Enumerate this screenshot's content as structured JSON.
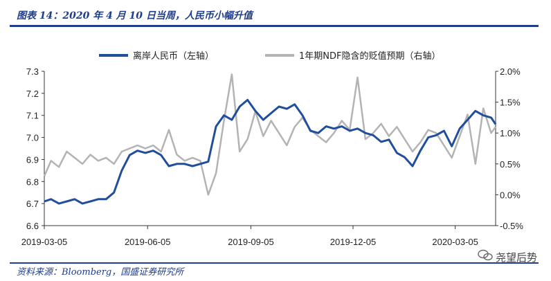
{
  "figure": {
    "title": "图表 14：2020 年 4 月 10 日当周，人民币小幅升值",
    "source": "资料来源：Bloomberg，国盛证券研究所",
    "watermark": "尧望后势"
  },
  "chart_data": {
    "type": "line",
    "title": "",
    "legend_position": "top",
    "grid": false,
    "x_ticks": [
      "2019-03-05",
      "2019-06-05",
      "2019-09-05",
      "2019-12-05",
      "2020-03-05"
    ],
    "x_range": [
      "2019-03-05",
      "2020-04-10"
    ],
    "y_left": {
      "ticks": [
        "6.6",
        "6.7",
        "6.8",
        "6.9",
        "7.0",
        "7.1",
        "7.2",
        "7.3"
      ],
      "range": [
        6.6,
        7.3
      ]
    },
    "y_right": {
      "ticks": [
        "-0.5%",
        "0.0%",
        "0.5%",
        "1.0%",
        "1.5%",
        "2.0%"
      ],
      "range": [
        -0.5,
        2.0
      ]
    },
    "colors": {
      "cnh": "#1f4e9c",
      "ndf": "#b3b3b3"
    },
    "series": [
      {
        "name": "离岸人民币（左轴）",
        "axis": "left",
        "x": [
          "2019-03-05",
          "2019-03-11",
          "2019-03-18",
          "2019-03-25",
          "2019-04-01",
          "2019-04-08",
          "2019-04-15",
          "2019-04-22",
          "2019-04-29",
          "2019-05-06",
          "2019-05-13",
          "2019-05-20",
          "2019-05-27",
          "2019-06-03",
          "2019-06-10",
          "2019-06-17",
          "2019-06-24",
          "2019-07-01",
          "2019-07-08",
          "2019-07-15",
          "2019-07-22",
          "2019-07-29",
          "2019-08-05",
          "2019-08-12",
          "2019-08-19",
          "2019-08-26",
          "2019-09-02",
          "2019-09-09",
          "2019-09-16",
          "2019-09-23",
          "2019-09-30",
          "2019-10-07",
          "2019-10-14",
          "2019-10-21",
          "2019-10-28",
          "2019-11-04",
          "2019-11-11",
          "2019-11-18",
          "2019-11-25",
          "2019-12-02",
          "2019-12-09",
          "2019-12-16",
          "2019-12-23",
          "2019-12-30",
          "2020-01-06",
          "2020-01-13",
          "2020-01-20",
          "2020-01-27",
          "2020-02-03",
          "2020-02-10",
          "2020-02-17",
          "2020-02-24",
          "2020-03-02",
          "2020-03-09",
          "2020-03-16",
          "2020-03-23",
          "2020-03-30",
          "2020-04-06",
          "2020-04-10"
        ],
        "values": [
          6.71,
          6.72,
          6.7,
          6.71,
          6.72,
          6.7,
          6.71,
          6.72,
          6.72,
          6.75,
          6.85,
          6.92,
          6.94,
          6.93,
          6.94,
          6.92,
          6.87,
          6.88,
          6.88,
          6.87,
          6.88,
          6.89,
          7.05,
          7.1,
          7.08,
          7.14,
          7.17,
          7.12,
          7.08,
          7.11,
          7.14,
          7.13,
          7.15,
          7.1,
          7.03,
          7.02,
          7.05,
          7.04,
          7.05,
          7.03,
          7.04,
          7.02,
          7.01,
          6.98,
          6.99,
          6.93,
          6.91,
          6.87,
          6.94,
          7.0,
          7.01,
          7.03,
          6.96,
          7.04,
          7.08,
          7.12,
          7.1,
          7.09,
          7.06
        ]
      },
      {
        "name": "1年期NDF隐含的贬值预期（右轴）",
        "axis": "right",
        "x": [
          "2019-03-05",
          "2019-03-11",
          "2019-03-18",
          "2019-03-25",
          "2019-04-01",
          "2019-04-08",
          "2019-04-15",
          "2019-04-22",
          "2019-04-29",
          "2019-05-06",
          "2019-05-13",
          "2019-05-20",
          "2019-05-27",
          "2019-06-03",
          "2019-06-10",
          "2019-06-17",
          "2019-06-24",
          "2019-07-01",
          "2019-07-08",
          "2019-07-15",
          "2019-07-22",
          "2019-07-29",
          "2019-08-05",
          "2019-08-12",
          "2019-08-19",
          "2019-08-26",
          "2019-09-02",
          "2019-09-09",
          "2019-09-16",
          "2019-09-23",
          "2019-09-30",
          "2019-10-07",
          "2019-10-14",
          "2019-10-21",
          "2019-10-28",
          "2019-11-04",
          "2019-11-11",
          "2019-11-18",
          "2019-11-25",
          "2019-12-02",
          "2019-12-09",
          "2019-12-16",
          "2019-12-23",
          "2019-12-30",
          "2020-01-06",
          "2020-01-13",
          "2020-01-20",
          "2020-01-27",
          "2020-02-03",
          "2020-02-10",
          "2020-02-17",
          "2020-02-24",
          "2020-03-02",
          "2020-03-09",
          "2020-03-16",
          "2020-03-23",
          "2020-03-30",
          "2020-04-06",
          "2020-04-10"
        ],
        "values": [
          0.3,
          0.55,
          0.45,
          0.7,
          0.6,
          0.5,
          0.65,
          0.55,
          0.6,
          0.5,
          0.7,
          0.75,
          0.8,
          0.75,
          0.8,
          0.7,
          1.05,
          0.65,
          0.55,
          0.6,
          0.55,
          0.0,
          0.35,
          1.2,
          1.95,
          0.7,
          0.9,
          1.35,
          0.95,
          1.2,
          1.0,
          0.8,
          1.1,
          1.25,
          1.05,
          0.95,
          0.85,
          1.0,
          1.2,
          1.05,
          1.9,
          0.9,
          1.0,
          1.15,
          0.95,
          1.1,
          0.9,
          0.7,
          0.85,
          1.05,
          1.0,
          0.8,
          0.6,
          0.95,
          1.3,
          0.5,
          1.4,
          1.0,
          1.1
        ]
      }
    ]
  }
}
